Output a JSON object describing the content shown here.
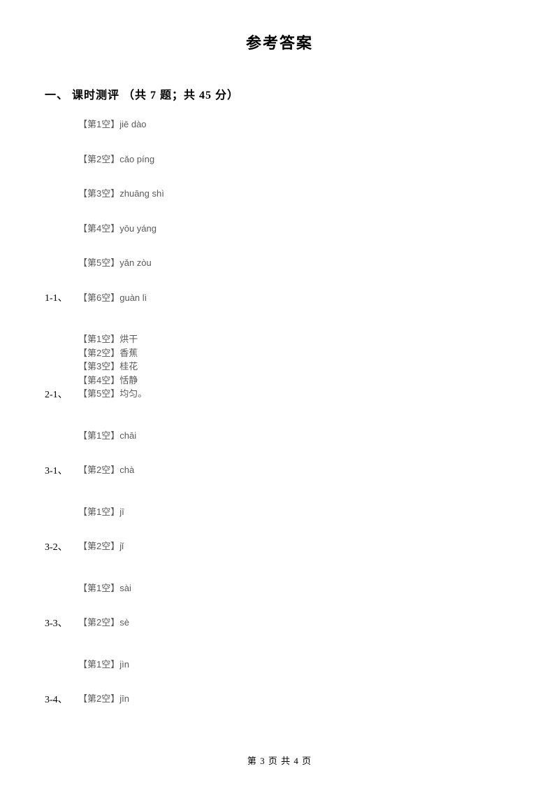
{
  "title": "参考答案",
  "section": "一、 课时测评 （共 7 题；共 45 分）",
  "groups": [
    {
      "label": "1-1、",
      "labelBottom": true,
      "lines": [
        {
          "text": "【第1空】jiē dào",
          "gap": "lg"
        },
        {
          "text": "【第2空】cǎo píng",
          "gap": "lg"
        },
        {
          "text": "【第3空】zhuāng shì",
          "gap": "lg"
        },
        {
          "text": "【第4空】yōu yáng",
          "gap": "lg"
        },
        {
          "text": "【第5空】yǎn zòu",
          "gap": "lg"
        },
        {
          "text": "【第6空】guàn lì",
          "gap": "sm"
        }
      ]
    },
    {
      "label": "2-1、",
      "labelBottom": true,
      "lines": [
        {
          "text": "【第1空】烘干",
          "gap": "sm"
        },
        {
          "text": "【第2空】香蕉",
          "gap": "sm"
        },
        {
          "text": "【第3空】桂花",
          "gap": "sm"
        },
        {
          "text": "【第4空】恬静",
          "gap": "sm"
        },
        {
          "text": "【第5空】均匀。",
          "gap": "sm"
        }
      ]
    },
    {
      "label": "3-1、",
      "labelBottom": true,
      "lines": [
        {
          "text": "【第1空】chāi",
          "gap": "lg"
        },
        {
          "text": "【第2空】chà",
          "gap": "sm"
        }
      ]
    },
    {
      "label": "3-2、",
      "labelBottom": true,
      "lines": [
        {
          "text": "【第1空】jī",
          "gap": "lg"
        },
        {
          "text": "【第2空】jǐ",
          "gap": "sm"
        }
      ]
    },
    {
      "label": "3-3、",
      "labelBottom": true,
      "lines": [
        {
          "text": "【第1空】sài",
          "gap": "lg"
        },
        {
          "text": "【第2空】sè",
          "gap": "sm"
        }
      ]
    },
    {
      "label": "3-4、",
      "labelBottom": true,
      "lines": [
        {
          "text": "【第1空】jìn",
          "gap": "lg"
        },
        {
          "text": "【第2空】jīn",
          "gap": "sm"
        }
      ]
    }
  ],
  "footer": "第 3 页 共 4 页",
  "colors": {
    "background": "#ffffff",
    "title_text": "#000000",
    "body_text": "#5a5a5a"
  },
  "typography": {
    "title_fontsize": 22,
    "section_fontsize": 16,
    "answer_fontsize": 13,
    "footer_fontsize": 13
  }
}
